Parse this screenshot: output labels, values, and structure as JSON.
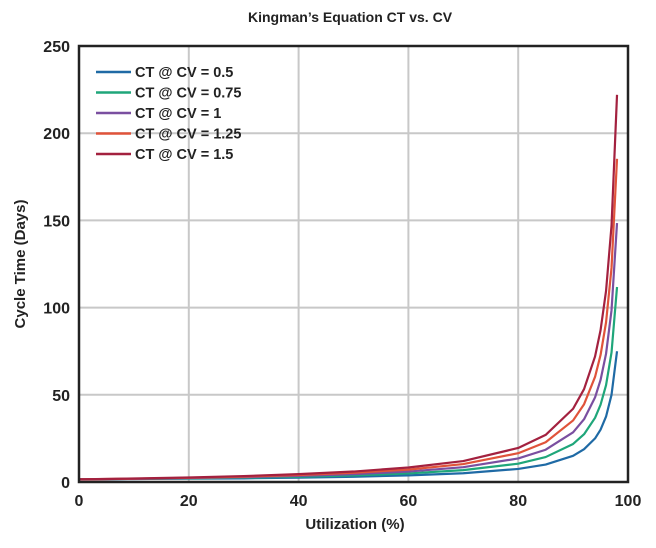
{
  "chart_data": {
    "type": "line",
    "title": "Kingman’s Equation CT vs. CV",
    "xlabel": "Utilization (%)",
    "ylabel": "Cycle Time (Days)",
    "xlim": [
      0,
      100
    ],
    "ylim": [
      0,
      250
    ],
    "xticks": [
      "0",
      "20",
      "40",
      "60",
      "80",
      "100"
    ],
    "yticks": [
      "0",
      "50",
      "100",
      "150",
      "200",
      "250"
    ],
    "grid": true,
    "legend": "top-left",
    "x": [
      0,
      10,
      20,
      30,
      40,
      50,
      60,
      70,
      80,
      85,
      90,
      92,
      94,
      95,
      96,
      97,
      98
    ],
    "series": [
      {
        "name": "CT @ CV = 0.5",
        "color": "#1f6aa5",
        "values": [
          1.5,
          1.7,
          1.9,
          2.1,
          2.5,
          3,
          3.8,
          5,
          7.5,
          10,
          15,
          18.8,
          25,
          30,
          37.5,
          50,
          75
        ]
      },
      {
        "name": "CT @ CV = 0.75",
        "color": "#1fa67a",
        "values": [
          1.5,
          1.8,
          2.1,
          2.5,
          3,
          3.8,
          4.9,
          6.8,
          10.5,
          14.3,
          21.8,
          27.4,
          36.8,
          44.3,
          55.5,
          74.3,
          111.8
        ]
      },
      {
        "name": "CT @ CV = 1",
        "color": "#7a4fa0",
        "values": [
          1.5,
          1.8,
          2.3,
          2.8,
          3.5,
          4.5,
          6,
          8.5,
          13.5,
          18.5,
          28.5,
          36,
          48.5,
          58.5,
          73.5,
          98.5,
          148.5
        ]
      },
      {
        "name": "CT @ CV = 1.25",
        "color": "#e0533a",
        "values": [
          1.5,
          1.9,
          2.4,
          3.1,
          4,
          5.3,
          7.1,
          10.3,
          16.5,
          22.8,
          35.3,
          44.6,
          60.3,
          72.8,
          91.5,
          122.8,
          185.3
        ]
      },
      {
        "name": "CT @ CV = 1.5",
        "color": "#a3213f",
        "values": [
          1.5,
          2,
          2.6,
          3.4,
          4.5,
          6,
          8.3,
          12,
          19.5,
          27,
          42,
          53.3,
          72,
          87,
          109.5,
          147,
          222
        ]
      }
    ]
  }
}
